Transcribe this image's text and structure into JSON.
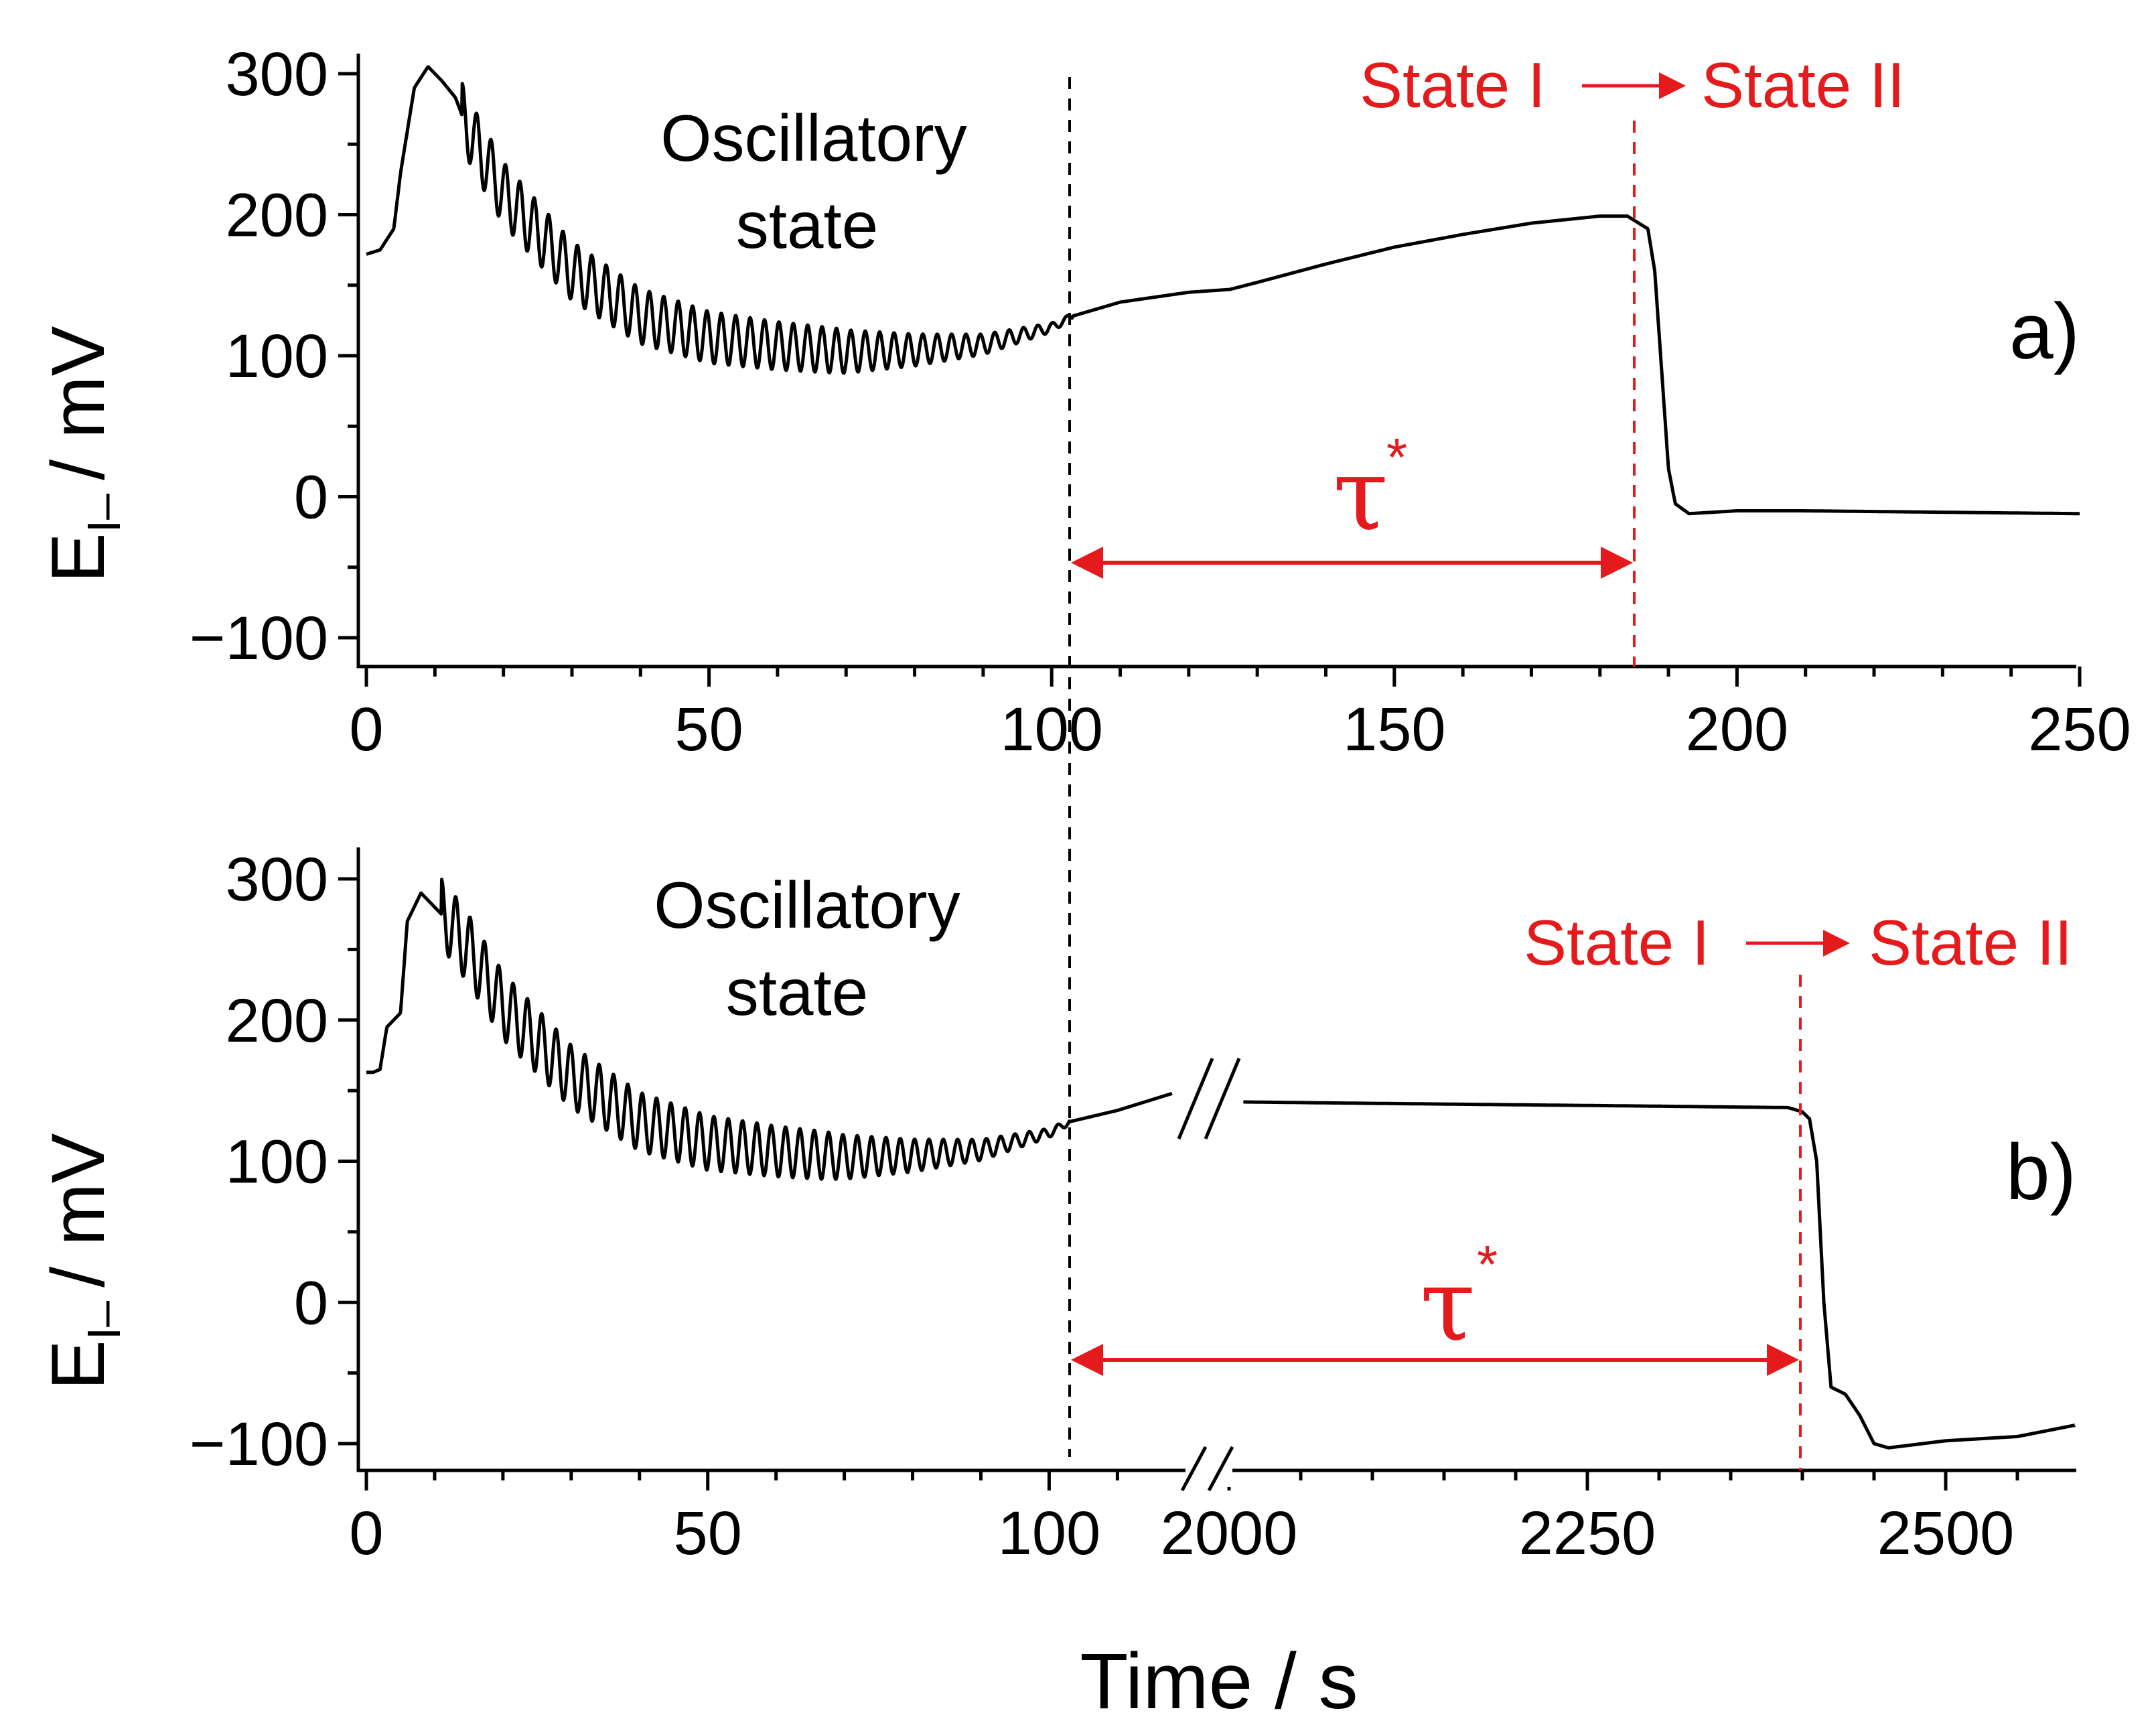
{
  "colors": {
    "accent": "#e41a1c",
    "line": "#000000"
  },
  "xlabel": "Time / s",
  "chart_data": [
    {
      "panel": "a",
      "type": "line",
      "panel_label": "a)",
      "ylabel_main": "E",
      "ylabel_sub": "I–",
      "ylabel_unit": "/ mV",
      "ylim": [
        -120,
        320
      ],
      "yticks": [
        300,
        200,
        100,
        0,
        -100
      ],
      "ytick_labels": [
        "300",
        "200",
        "100",
        "0",
        "−100"
      ],
      "xlim": [
        -2,
        250
      ],
      "xticks": [
        0,
        50,
        100,
        150,
        200,
        250
      ],
      "xtick_labels": [
        "0",
        "50",
        "100",
        "150",
        "200",
        "250"
      ],
      "annotation": [
        "Oscillatory",
        "state"
      ],
      "transition_text": {
        "from": "State I",
        "to": "State II"
      },
      "tau_label": "τ",
      "tau_sup": "*",
      "osc_end_x": 103,
      "transition_x": 186,
      "series": [
        {
          "name": "E_I-",
          "x": [
            0,
            2,
            4,
            5,
            7,
            9,
            11,
            13,
            14,
            16,
            20,
            30,
            40,
            50,
            60,
            70,
            80,
            90,
            100,
            103,
            110,
            120,
            126,
            130,
            140,
            150,
            160,
            170,
            180,
            184,
            187,
            188,
            189,
            190,
            191,
            193,
            200,
            210,
            230,
            250
          ],
          "y": [
            172,
            175,
            190,
            230,
            290,
            305,
            295,
            283,
            270,
            250,
            215,
            160,
            128,
            113,
            107,
            103,
            104,
            108,
            120,
            128,
            138,
            145,
            147,
            152,
            165,
            177,
            186,
            194,
            199,
            199,
            190,
            160,
            90,
            20,
            -5,
            -12,
            -10,
            -10,
            -11,
            -12
          ]
        }
      ],
      "oscillation": {
        "start": 14,
        "end": 103,
        "period": 2.1,
        "amp_start": 23,
        "amp_mid": 16,
        "amp_end": 2
      }
    },
    {
      "panel": "b",
      "type": "line",
      "panel_label": "b)",
      "ylabel_main": "E",
      "ylabel_sub": "I–",
      "ylabel_unit": "/ mV",
      "ylim": [
        -120,
        320
      ],
      "yticks": [
        300,
        200,
        100,
        0,
        -100
      ],
      "ytick_labels": [
        "300",
        "200",
        "100",
        "0",
        "−100"
      ],
      "xticks_left": [
        0,
        50,
        100
      ],
      "xtick_labels_left": [
        "0",
        "50",
        "100"
      ],
      "xticks_right": [
        2000,
        2250,
        2500
      ],
      "xtick_labels_right": [
        "2000",
        "2250",
        "2500"
      ],
      "xlim_left": [
        -2,
        120
      ],
      "xlim_right": [
        1990,
        2590
      ],
      "axis_break": true,
      "annotation": [
        "Oscillatory",
        "state"
      ],
      "transition_text": {
        "from": "State I",
        "to": "State II"
      },
      "tau_label": "τ",
      "tau_sup": "*",
      "osc_end_x": 103,
      "transition_x": 2405,
      "series": [
        {
          "name": "E_I- (early)",
          "x": [
            0,
            1,
            2,
            3,
            5,
            6,
            8,
            10,
            12,
            15,
            20,
            30,
            40,
            50,
            60,
            70,
            80,
            90,
            100,
            103,
            110,
            118
          ],
          "y": [
            163,
            163,
            165,
            195,
            205,
            270,
            290,
            280,
            270,
            250,
            210,
            160,
            128,
            113,
            107,
            103,
            104,
            108,
            120,
            128,
            136,
            148
          ]
        },
        {
          "name": "E_I- (late)",
          "x": [
            2010,
            2100,
            2200,
            2300,
            2390,
            2400,
            2405,
            2410,
            2415,
            2420,
            2430,
            2440,
            2450,
            2460,
            2500,
            2550,
            2590
          ],
          "y": [
            142,
            141,
            140,
            139,
            138,
            135,
            130,
            100,
            0,
            -60,
            -65,
            -80,
            -100,
            -103,
            -98,
            -95,
            -87
          ]
        }
      ],
      "oscillation": {
        "start": 11,
        "end": 103,
        "period": 2.1,
        "amp_start": 25,
        "amp_mid": 17,
        "amp_end": 2
      }
    }
  ]
}
